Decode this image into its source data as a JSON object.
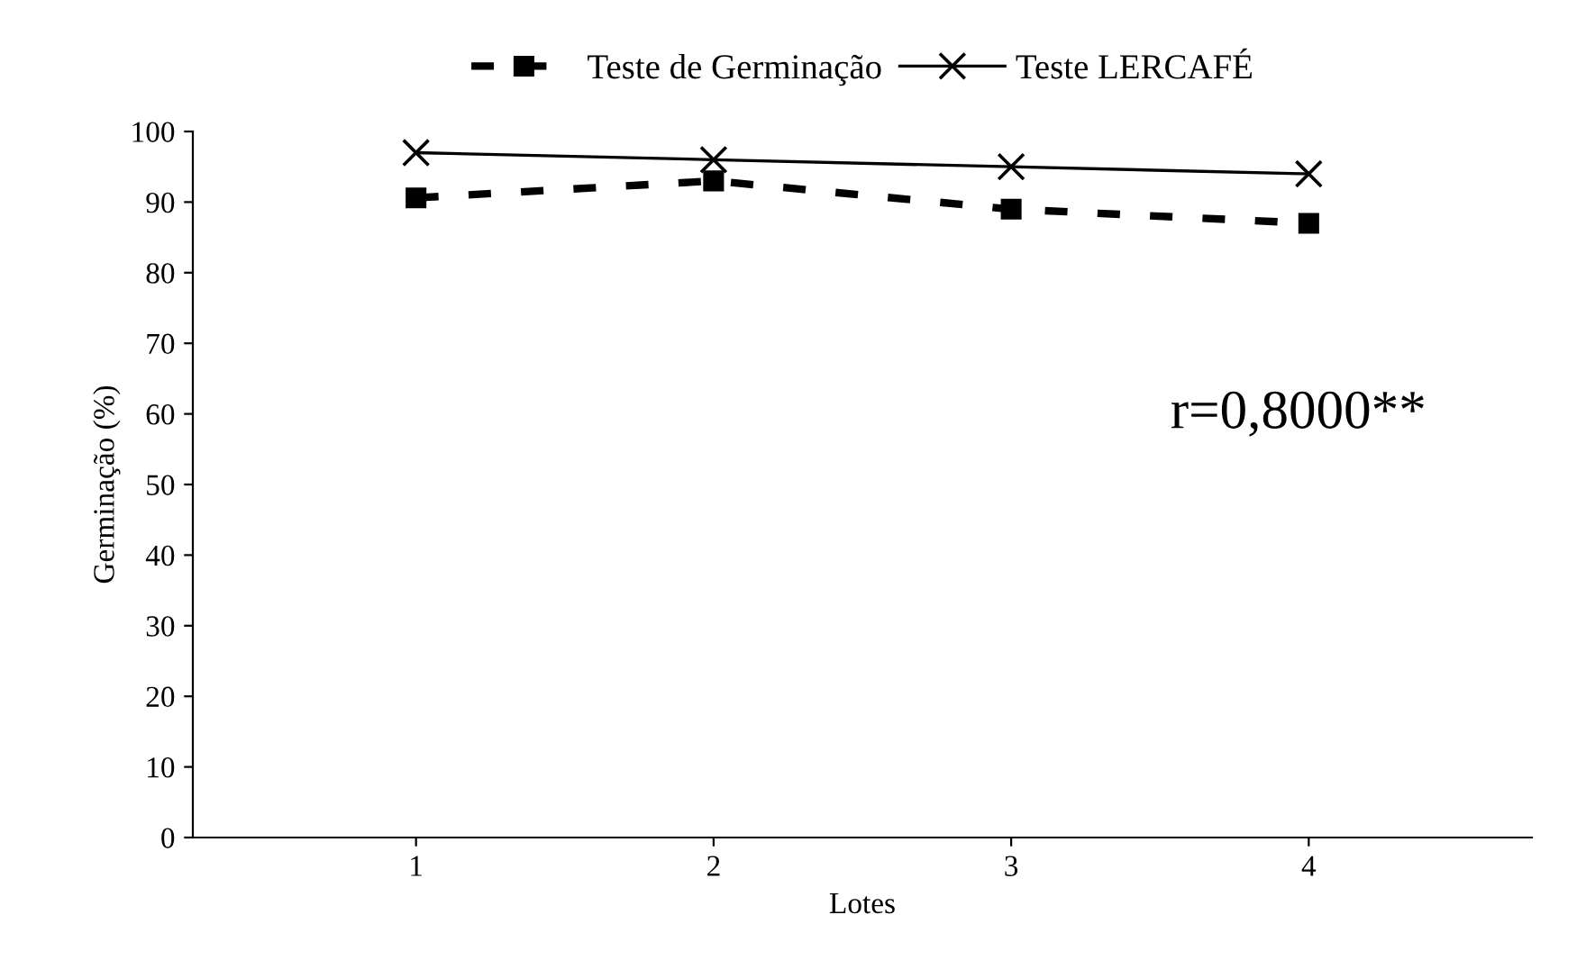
{
  "chart_data": {
    "type": "line",
    "xlabel": "Lotes",
    "ylabel": "Germinação (%)",
    "categories": [
      "1",
      "2",
      "3",
      "4"
    ],
    "series": [
      {
        "name": "Teste de Germinação",
        "color": "#000000",
        "values": [
          90.6,
          93,
          89,
          87
        ],
        "marker": "square",
        "line_style": "dashed"
      },
      {
        "name": "Teste LERCAFÉ",
        "color": "#000000",
        "values": [
          97,
          96,
          95,
          94
        ],
        "marker": "cross",
        "line_style": "solid"
      }
    ],
    "ylim": [
      0,
      100
    ],
    "yticks": [
      0,
      10,
      20,
      30,
      40,
      50,
      60,
      70,
      80,
      90,
      100
    ],
    "grid": false,
    "legend": "top",
    "annotations": [
      {
        "text": "r=0,8000**"
      }
    ]
  }
}
